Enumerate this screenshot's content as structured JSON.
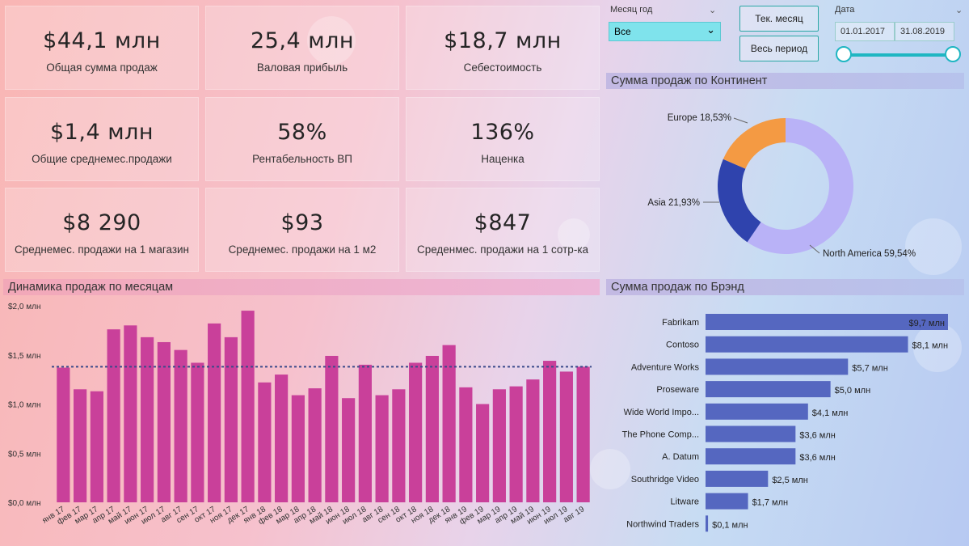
{
  "kpis": [
    {
      "value": "$44,1 млн",
      "label": "Общая сумма продаж"
    },
    {
      "value": "25,4 млн",
      "label": "Валовая прибыль"
    },
    {
      "value": "$18,7 млн",
      "label": "Себестоимость"
    },
    {
      "value": "$1,4 млн",
      "label": "Общие среднемес.продажи"
    },
    {
      "value": "58%",
      "label": "Рентабельность ВП"
    },
    {
      "value": "136%",
      "label": "Наценка"
    },
    {
      "value": "$8 290",
      "label": "Среднемес. продажи на 1 магазин"
    },
    {
      "value": "$93",
      "label": "Среднемес. продажи на 1 м2"
    },
    {
      "value": "$847",
      "label": "Среденмес. продажи на 1 сотр-ка"
    }
  ],
  "slicers": {
    "month_label": "Месяц год",
    "month_value": "Все",
    "btn_current": "Тек. месяц",
    "btn_all": "Весь период",
    "date_label": "Дата",
    "date_from": "01.01.2017",
    "date_to": "31.08.2019",
    "range_fraction": [
      0,
      1
    ]
  },
  "colors": {
    "bar_pink": "#c9409a",
    "bar_blue": "#5567c0",
    "na": "#b9b2f7",
    "asia": "#2f43ad",
    "europe": "#f49a43",
    "slider": "#1fb6c2"
  },
  "chart_data": [
    {
      "type": "bar",
      "title": "Динамика продаж по месяцам",
      "categories": [
        "янв 17",
        "фев 17",
        "мар 17",
        "апр 17",
        "май 17",
        "июн 17",
        "июл 17",
        "авг 17",
        "сен 17",
        "окт 17",
        "ноя 17",
        "дек 17",
        "янв 18",
        "фев 18",
        "мар 18",
        "апр 18",
        "май 18",
        "июн 18",
        "июл 18",
        "авг 18",
        "сен 18",
        "окт 18",
        "ноя 18",
        "дек 18",
        "янв 19",
        "фев 19",
        "мар 19",
        "апр 19",
        "май 19",
        "июн 19",
        "июл 19",
        "авг 19"
      ],
      "values": [
        1.37,
        1.15,
        1.13,
        1.76,
        1.8,
        1.68,
        1.63,
        1.55,
        1.42,
        1.82,
        1.68,
        1.95,
        1.22,
        1.3,
        1.09,
        1.16,
        1.49,
        1.06,
        1.4,
        1.09,
        1.15,
        1.42,
        1.49,
        1.6,
        1.17,
        1.0,
        1.15,
        1.18,
        1.25,
        1.44,
        1.33,
        1.38
      ],
      "average": 1.38,
      "yticks": [
        "$0,0 млн",
        "$0,5 млн",
        "$1,0 млн",
        "$1,5 млн",
        "$2,0 млн"
      ],
      "ylim": [
        0,
        2.0
      ]
    },
    {
      "type": "pie",
      "title": "Сумма продаж по Континент",
      "slices": [
        {
          "name": "North America",
          "value": 59.54,
          "label": "North America 59,54%"
        },
        {
          "name": "Asia",
          "value": 21.93,
          "label": "Asia 21,93%"
        },
        {
          "name": "Europe",
          "value": 18.53,
          "label": "Europe 18,53%"
        }
      ]
    },
    {
      "type": "bar",
      "title": "Сумма продаж по Брэнд",
      "categories": [
        "Fabrikam",
        "Contoso",
        "Adventure Works",
        "Proseware",
        "Wide World Impo...",
        "The Phone Comp...",
        "A. Datum",
        "Southridge Video",
        "Litware",
        "Northwind Traders"
      ],
      "values": [
        9.7,
        8.1,
        5.7,
        5.0,
        4.1,
        3.6,
        3.6,
        2.5,
        1.7,
        0.1
      ],
      "labels": [
        "$9,7 млн",
        "$8,1 млн",
        "$5,7 млн",
        "$5,0 млн",
        "$4,1 млн",
        "$3,6 млн",
        "$3,6 млн",
        "$2,5 млн",
        "$1,7 млн",
        "$0,1 млн"
      ]
    }
  ]
}
